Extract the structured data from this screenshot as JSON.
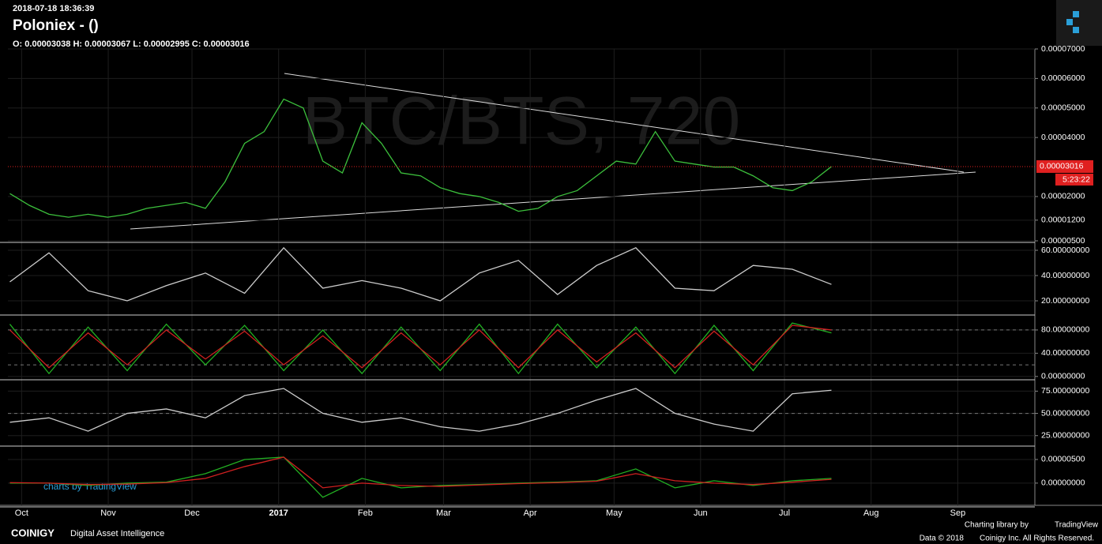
{
  "header": {
    "timestamp": "2018-07-18 18:36:39",
    "title": "Poloniex -  ()",
    "ohlc": "O: 0.00003038 H: 0.00003067 L: 0.00002995 C: 0.00003016",
    "watermark": "BTC/BTS, 720"
  },
  "footer": {
    "charts_by": "charts by TradingView",
    "brand": "COINIGY",
    "tagline": "Digital Asset Intelligence",
    "charting_library": "Charting library by",
    "library_name": "TradingView",
    "data_year": "Data © 2018",
    "rights": "Coinigy Inc. All Rights Reserved."
  },
  "chart_data": [
    {
      "type": "line",
      "xlim": [
        -0.7,
        51.8
      ],
      "ylim": [
        5e-06,
        7e-05
      ],
      "xticks": [
        {
          "value": 0,
          "label": "Oct"
        },
        {
          "value": 4.43,
          "label": "Nov"
        },
        {
          "value": 8.71,
          "label": "Dec"
        },
        {
          "value": 13.14,
          "label": "2017"
        },
        {
          "value": 17.57,
          "label": "Feb"
        },
        {
          "value": 21.57,
          "label": "Mar"
        },
        {
          "value": 26,
          "label": "Apr"
        },
        {
          "value": 30.29,
          "label": "May"
        },
        {
          "value": 34.71,
          "label": "Jun"
        },
        {
          "value": 39,
          "label": "Jul"
        },
        {
          "value": 43.43,
          "label": "Aug"
        },
        {
          "value": 47.86,
          "label": "Sep"
        }
      ],
      "yticks": [
        {
          "value": 7e-05,
          "label": "0.00007000"
        },
        {
          "value": 6e-05,
          "label": "0.00006000"
        },
        {
          "value": 5e-05,
          "label": "0.00005000"
        },
        {
          "value": 4e-05,
          "label": "0.00004000"
        },
        {
          "value": 2e-05,
          "label": "0.00002000"
        },
        {
          "value": 1.2e-05,
          "label": "0.00001200"
        },
        {
          "value": 5e-06,
          "label": "0.00000500"
        }
      ],
      "grid": true,
      "price_line": 3.016e-05,
      "countdown": "5:23:22",
      "series": [
        {
          "color": "#3cc03c",
          "x": [
            -0.6,
            0.4,
            1.4,
            2.4,
            3.4,
            4.4,
            5.4,
            6.4,
            7.4,
            8.4,
            9.4,
            10.4,
            11.4,
            12.4,
            13.4,
            14.4,
            15.4,
            16.4,
            17.4,
            18.4,
            19.4,
            20.4,
            21.4,
            22.4,
            23.4,
            24.4,
            25.4,
            26.4,
            27.4,
            28.4,
            29.4,
            30.4,
            31.4,
            32.4,
            33.4,
            34.4,
            35.4,
            36.4,
            37.4,
            38.4,
            39.4,
            40.4,
            41.4
          ],
          "values": [
            2.1e-05,
            1.7e-05,
            1.4e-05,
            1.3e-05,
            1.4e-05,
            1.3e-05,
            1.4e-05,
            1.6e-05,
            1.7e-05,
            1.8e-05,
            1.6e-05,
            2.5e-05,
            3.8e-05,
            4.2e-05,
            5.3e-05,
            5e-05,
            3.2e-05,
            2.8e-05,
            4.5e-05,
            3.8e-05,
            2.8e-05,
            2.7e-05,
            2.3e-05,
            2.1e-05,
            2e-05,
            1.8e-05,
            1.5e-05,
            1.6e-05,
            2e-05,
            2.2e-05,
            2.7e-05,
            3.2e-05,
            3.1e-05,
            4.2e-05,
            3.2e-05,
            3.1e-05,
            3e-05,
            3e-05,
            2.7e-05,
            2.3e-05,
            2.2e-05,
            2.5e-05,
            3.016e-05
          ]
        }
      ]
    },
    {
      "type": "line",
      "xlim": [
        -0.7,
        51.8
      ],
      "ylim": [
        10,
        65
      ],
      "yticks": [
        {
          "value": 60,
          "label": "60.00000000"
        },
        {
          "value": 40,
          "label": "40.00000000"
        },
        {
          "value": 20,
          "label": "20.00000000"
        }
      ],
      "grid": true,
      "series": [
        {
          "color": "#cccccc",
          "x": [
            -0.6,
            1.4,
            3.4,
            5.4,
            7.4,
            9.4,
            11.4,
            13.4,
            15.4,
            17.4,
            19.4,
            21.4,
            23.4,
            25.4,
            27.4,
            29.4,
            31.4,
            33.4,
            35.4,
            37.4,
            39.4,
            41.4
          ],
          "values": [
            35,
            58,
            28,
            20,
            32,
            42,
            26,
            62,
            30,
            36,
            30,
            20,
            42,
            52,
            25,
            48,
            62,
            30,
            28,
            48,
            45,
            33
          ]
        }
      ]
    },
    {
      "type": "line",
      "xlim": [
        -0.7,
        51.8
      ],
      "ylim": [
        -3,
        103
      ],
      "yticks": [
        {
          "value": 80,
          "label": "80.00000000"
        },
        {
          "value": 40,
          "label": "40.00000000"
        },
        {
          "value": 0,
          "label": "0.00000000"
        }
      ],
      "grid": true,
      "hlines": [
        20,
        80
      ],
      "series": [
        {
          "color": "#22b022",
          "x": [
            -0.6,
            1.4,
            3.4,
            5.4,
            7.4,
            9.4,
            11.4,
            13.4,
            15.4,
            17.4,
            19.4,
            21.4,
            23.4,
            25.4,
            27.4,
            29.4,
            31.4,
            33.4,
            35.4,
            37.4,
            39.4,
            41.4
          ],
          "values": [
            90,
            5,
            85,
            10,
            90,
            20,
            88,
            10,
            80,
            5,
            85,
            10,
            90,
            5,
            90,
            15,
            85,
            5,
            88,
            10,
            92,
            75
          ]
        },
        {
          "color": "#d02020",
          "x": [
            -0.6,
            1.4,
            3.4,
            5.4,
            7.4,
            9.4,
            11.4,
            13.4,
            15.4,
            17.4,
            19.4,
            21.4,
            23.4,
            25.4,
            27.4,
            29.4,
            31.4,
            33.4,
            35.4,
            37.4,
            39.4,
            41.4
          ],
          "values": [
            80,
            15,
            75,
            20,
            80,
            30,
            78,
            20,
            70,
            15,
            75,
            20,
            80,
            15,
            80,
            25,
            75,
            15,
            78,
            20,
            88,
            80
          ]
        }
      ]
    },
    {
      "type": "line",
      "xlim": [
        -0.7,
        51.8
      ],
      "ylim": [
        15,
        86
      ],
      "yticks": [
        {
          "value": 75,
          "label": "75.00000000"
        },
        {
          "value": 50,
          "label": "50.00000000"
        },
        {
          "value": 25,
          "label": "25.00000000"
        }
      ],
      "grid": true,
      "hlines": [
        50
      ],
      "series": [
        {
          "color": "#cccccc",
          "x": [
            -0.6,
            1.4,
            3.4,
            5.4,
            7.4,
            9.4,
            11.4,
            13.4,
            15.4,
            17.4,
            19.4,
            21.4,
            23.4,
            25.4,
            27.4,
            29.4,
            31.4,
            33.4,
            35.4,
            37.4,
            39.4,
            41.4
          ],
          "values": [
            40,
            45,
            30,
            50,
            55,
            45,
            70,
            78,
            50,
            40,
            45,
            35,
            30,
            38,
            50,
            65,
            78,
            50,
            38,
            30,
            72,
            76
          ]
        }
      ]
    },
    {
      "type": "line",
      "xlim": [
        -0.7,
        51.8
      ],
      "ylim": [
        -4.7e-06,
        7.5e-06
      ],
      "yticks": [
        {
          "value": 5e-06,
          "label": "0.00000500"
        },
        {
          "value": 0,
          "label": "0.00000000"
        }
      ],
      "grid": true,
      "series": [
        {
          "color": "#22b022",
          "x": [
            -0.6,
            1.4,
            3.4,
            5.4,
            7.4,
            9.4,
            11.4,
            13.4,
            15.4,
            17.4,
            19.4,
            21.4,
            23.4,
            25.4,
            27.4,
            29.4,
            31.4,
            33.4,
            35.4,
            37.4,
            39.4,
            41.4
          ],
          "values": [
            0,
            0,
            -5e-07,
            0,
            2e-07,
            2e-06,
            5e-06,
            5.5e-06,
            -3e-06,
            1e-06,
            -1e-06,
            -5e-07,
            -3e-07,
            0,
            2e-07,
            5e-07,
            3e-06,
            -1e-06,
            5e-07,
            -5e-07,
            5e-07,
            1e-06
          ]
        },
        {
          "color": "#d02020",
          "x": [
            -0.6,
            1.4,
            3.4,
            5.4,
            7.4,
            9.4,
            11.4,
            13.4,
            15.4,
            17.4,
            19.4,
            21.4,
            23.4,
            25.4,
            27.4,
            29.4,
            31.4,
            33.4,
            35.4,
            37.4,
            39.4,
            41.4
          ],
          "values": [
            1e-07,
            0,
            -3e-07,
            -2e-07,
            1e-07,
            1e-06,
            3.5e-06,
            5.5e-06,
            -1e-06,
            0,
            -5e-07,
            -7e-07,
            -4e-07,
            -1e-07,
            1e-07,
            4e-07,
            2e-06,
            5e-07,
            0,
            -3e-07,
            2e-07,
            8e-07
          ]
        }
      ]
    }
  ]
}
